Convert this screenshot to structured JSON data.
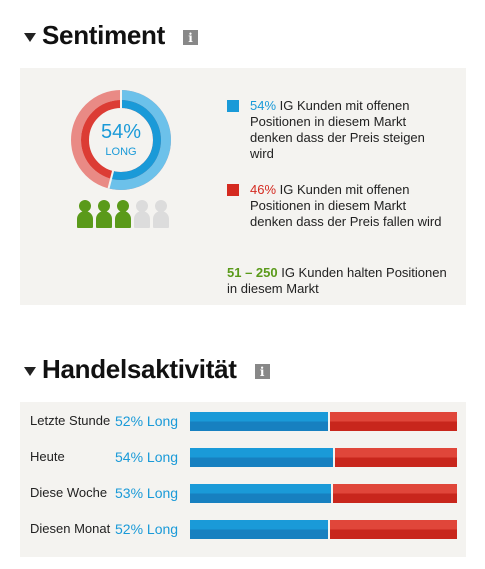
{
  "sentiment": {
    "title": "Sentiment",
    "info_label": "i",
    "donut": {
      "percent_text": "54%",
      "label": "LONG",
      "long_fraction": 0.54
    },
    "people": {
      "total": 5,
      "filled": 3
    },
    "long_item": {
      "pct": "54%",
      "text": " IG Kunden mit offenen Positionen in diesem Markt denken dass der Preis steigen wird"
    },
    "short_item": {
      "pct": "46%",
      "text": " IG Kunden mit offenen Positionen in diesem Markt denken dass der Preis fallen wird"
    },
    "summary": {
      "range": "51 – 250",
      "text": " IG Kunden halten Positionen in diesem Markt"
    },
    "colors": {
      "long": "#1a9ad8",
      "short": "#d42a20",
      "people": "#5a9a1a"
    }
  },
  "activity": {
    "title": "Handelsaktivität",
    "info_label": "i",
    "rows": [
      {
        "label": "Letzte Stunde",
        "pct_text": "52% Long",
        "long": 52
      },
      {
        "label": "Heute",
        "pct_text": "54% Long",
        "long": 54
      },
      {
        "label": "Diese Woche",
        "pct_text": "53% Long",
        "long": 53
      },
      {
        "label": "Diesen Monat",
        "pct_text": "52% Long",
        "long": 52
      }
    ]
  }
}
